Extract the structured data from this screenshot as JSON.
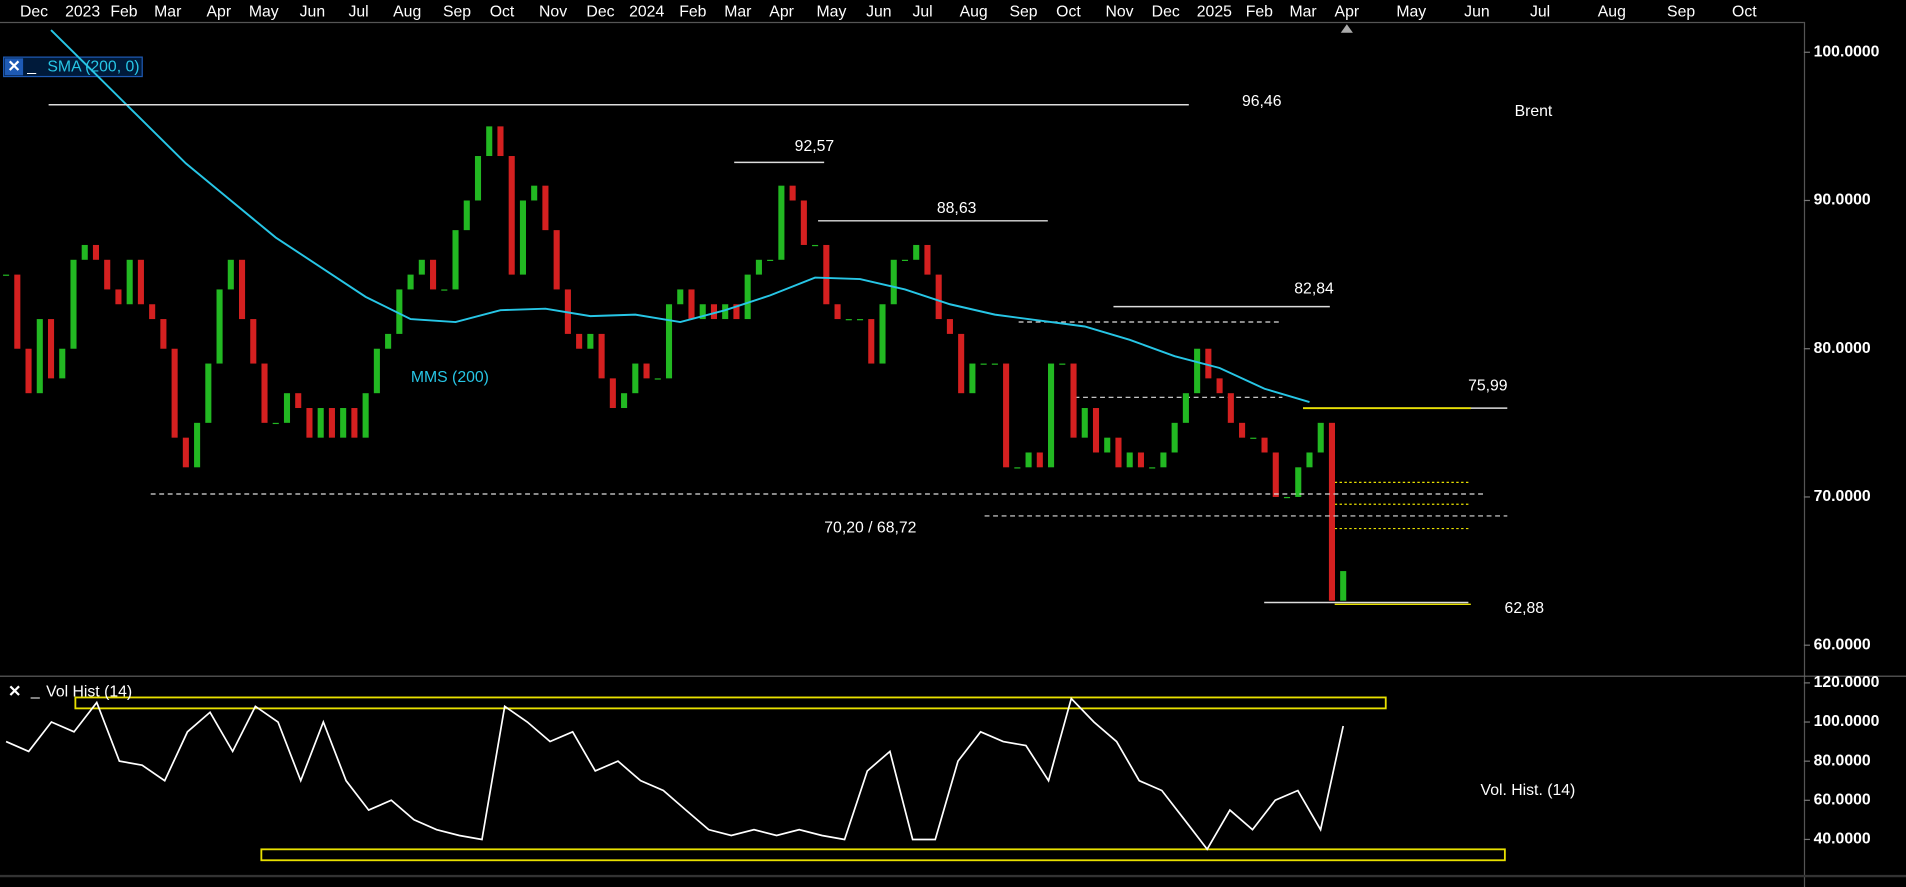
{
  "top_axis": {
    "labels": [
      "Dec",
      "2023",
      "Feb",
      "Mar",
      "Apr",
      "May",
      "Jun",
      "Jul",
      "Aug",
      "Sep",
      "Oct",
      "Nov",
      "Dec",
      "2024",
      "Feb",
      "Mar",
      "Apr",
      "May",
      "Jun",
      "Jul",
      "Aug",
      "Sep",
      "Oct",
      "Nov",
      "Dec",
      "2025",
      "Feb",
      "Mar",
      "Apr",
      "May",
      "Jun",
      "Jul",
      "Aug",
      "Sep",
      "Oct"
    ]
  },
  "chart_data": [
    {
      "type": "candlestick",
      "title": "Brent",
      "indicator_label": "SMA (200, 0)",
      "values": [
        85,
        80,
        77,
        82,
        78,
        80,
        86,
        87,
        86,
        84,
        83,
        86,
        83,
        82,
        80,
        74,
        72,
        75,
        79,
        84,
        86,
        82,
        79,
        75,
        75,
        77,
        76,
        74,
        76,
        74,
        76,
        74,
        77,
        80,
        81,
        84,
        85,
        86,
        84,
        84,
        88,
        90,
        93,
        95,
        93,
        85,
        90,
        91,
        88,
        84,
        81,
        80,
        81,
        78,
        76,
        77,
        79,
        78,
        78,
        83,
        84,
        82,
        83,
        82,
        83,
        82,
        85,
        86,
        86,
        91,
        90,
        87,
        87,
        83,
        82,
        82,
        82,
        79,
        83,
        86,
        86,
        87,
        85,
        82,
        81,
        77,
        79,
        79,
        79,
        72,
        72,
        73,
        72,
        79,
        79,
        74,
        76,
        73,
        74,
        72,
        73,
        72,
        72,
        73,
        75,
        77,
        80,
        78,
        77,
        75,
        74,
        74,
        73,
        70,
        70,
        72,
        73,
        75,
        63,
        65
      ],
      "up_color": "#22b822",
      "down_color": "#d42020",
      "series": [
        {
          "name": "MMS (200)",
          "color": "#27c6e6",
          "values": [
            null,
            101.5,
            98.5,
            95.5,
            92.5,
            90,
            87.5,
            85.5,
            83.5,
            82,
            81.8,
            82.6,
            82.7,
            82.2,
            82.3,
            81.8,
            82.6,
            83.6,
            84.8,
            84.7,
            84,
            83,
            82.3,
            81.9,
            81.5,
            80.6,
            79.5,
            78.7,
            77.3,
            76.4
          ]
        }
      ],
      "ylim": [
        57.95,
        102.05
      ],
      "yticks": [
        {
          "value": 100,
          "label": "100.0000"
        },
        {
          "value": 90,
          "label": "90.0000"
        },
        {
          "value": 80,
          "label": "80.0000"
        },
        {
          "value": 70,
          "label": "70.0000"
        },
        {
          "value": 60,
          "label": "60.0000"
        }
      ],
      "levels": [
        {
          "value": 96.46,
          "label": "96,46"
        },
        {
          "value": 92.57,
          "label": "92,57"
        },
        {
          "value": 88.63,
          "label": "88,63"
        },
        {
          "value": 82.84,
          "label": "82,84"
        },
        {
          "value": 75.99,
          "label": "75,99"
        },
        {
          "value": 62.88,
          "label": "62,88"
        }
      ],
      "support": {
        "label": "70,20 / 68,72",
        "values": [
          70.2,
          68.72
        ]
      }
    },
    {
      "type": "line",
      "title": "Vol. Hist. (14)",
      "indicator_label": "Vol Hist (14)",
      "color": "#ffffff",
      "values": [
        90,
        85,
        100,
        95,
        110,
        80,
        78,
        70,
        95,
        105,
        85,
        108,
        100,
        70,
        100,
        70,
        55,
        60,
        50,
        45,
        42,
        40,
        108,
        100,
        90,
        95,
        75,
        80,
        70,
        65,
        55,
        45,
        42,
        45,
        42,
        45,
        42,
        40,
        75,
        85,
        40,
        40,
        80,
        95,
        90,
        88,
        70,
        112,
        100,
        90,
        70,
        65,
        50,
        35,
        55,
        45,
        60,
        65,
        45,
        98
      ],
      "ylim": [
        21.9,
        122.5
      ],
      "yticks": [
        {
          "value": 120,
          "label": "120.0000"
        },
        {
          "value": 100,
          "label": "100.0000"
        },
        {
          "value": 80,
          "label": "80.0000"
        },
        {
          "value": 60,
          "label": "60.0000"
        },
        {
          "value": 40,
          "label": "40.0000"
        }
      ]
    }
  ]
}
